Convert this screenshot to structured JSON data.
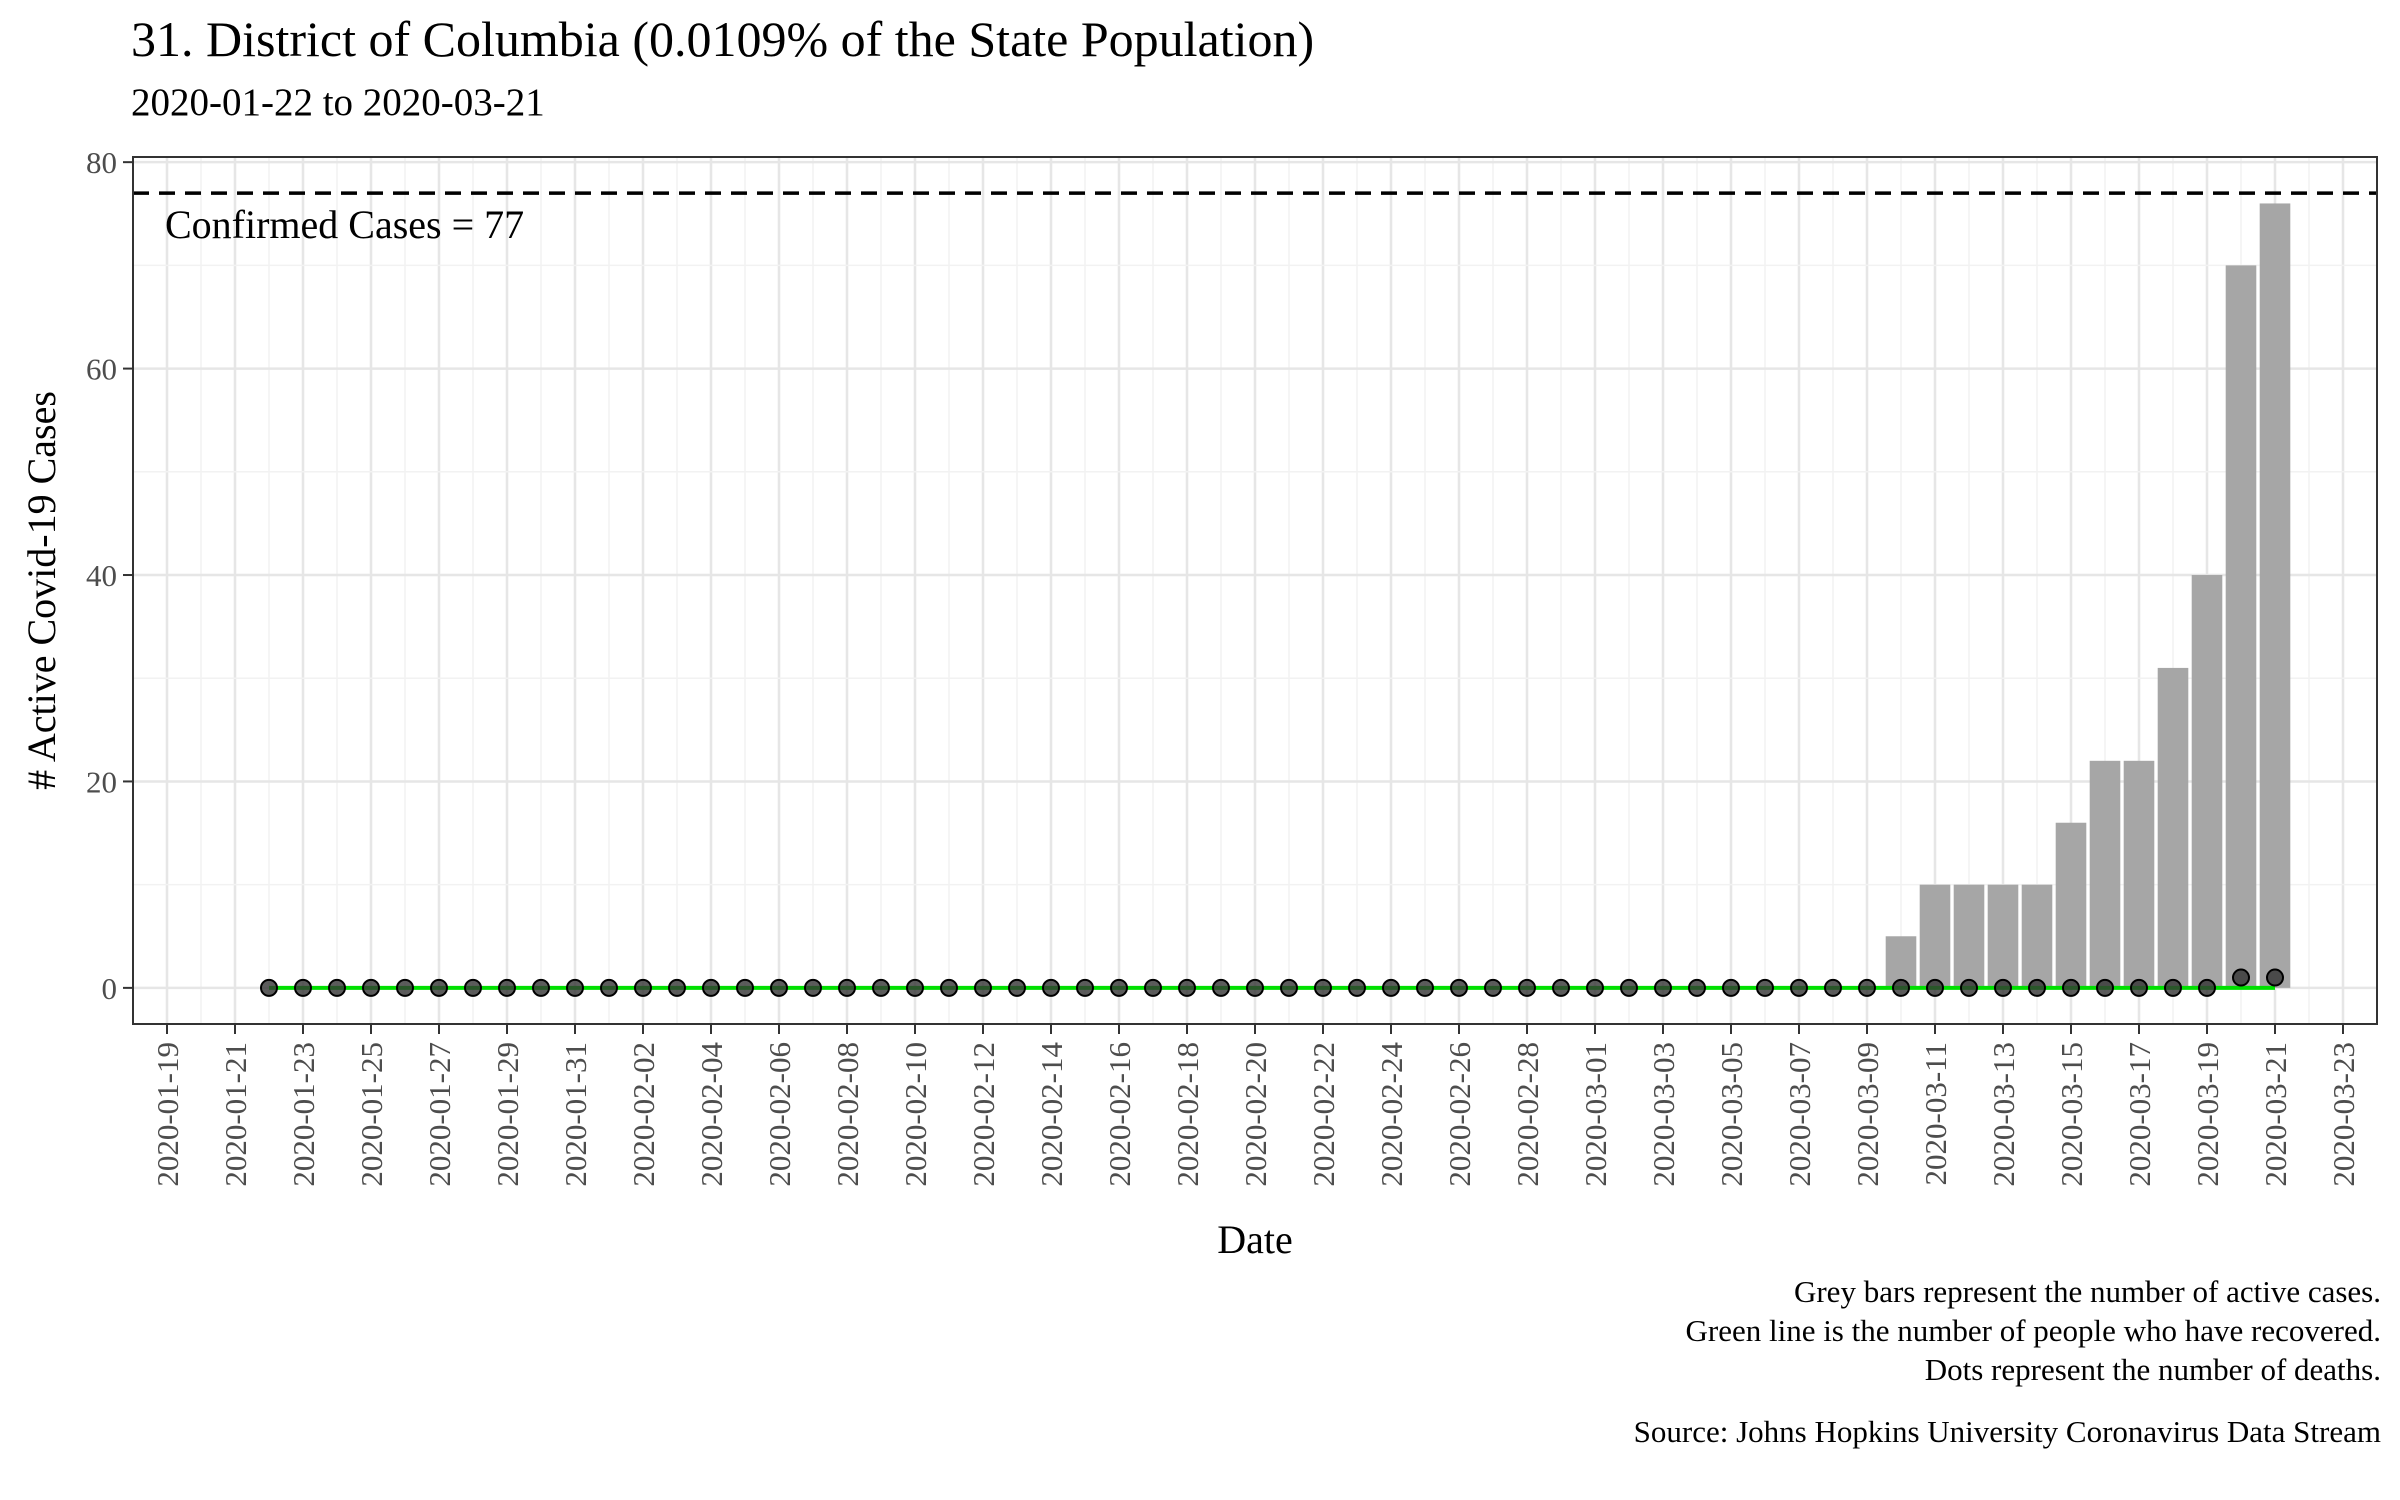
{
  "title": "31. District of Columbia (0.0109% of the State Population)",
  "subtitle": "2020-01-22 to 2020-03-21",
  "caption": {
    "lines": [
      "Grey bars represent the number of active cases.",
      "Green line is the number of people who have recovered.",
      "Dots represent the number of deaths."
    ],
    "source": "Source: Johns Hopkins University Coronavirus Data Stream"
  },
  "colors": {
    "bars": "#a6a6a6",
    "recovered_line": "#00e000",
    "death_dots": "#333333",
    "reference_line": "#000000",
    "grid_major": "#e6e6e6",
    "grid_minor": "#f2f2f2"
  },
  "chart_data": {
    "type": "bar",
    "title": "31. District of Columbia (0.0109% of the State Population)",
    "xlabel": "Date",
    "ylabel": "# Active Covid-19 Cases",
    "x_range": [
      "2020-01-18",
      "2020-03-24"
    ],
    "ylim": [
      -3.5,
      80.5
    ],
    "y_ticks": [
      0,
      20,
      40,
      60,
      80
    ],
    "x_ticks": [
      "2020-01-19",
      "2020-01-21",
      "2020-01-23",
      "2020-01-25",
      "2020-01-27",
      "2020-01-29",
      "2020-01-31",
      "2020-02-02",
      "2020-02-04",
      "2020-02-06",
      "2020-02-08",
      "2020-02-10",
      "2020-02-12",
      "2020-02-14",
      "2020-02-16",
      "2020-02-18",
      "2020-02-20",
      "2020-02-22",
      "2020-02-24",
      "2020-02-26",
      "2020-02-28",
      "2020-03-01",
      "2020-03-03",
      "2020-03-05",
      "2020-03-07",
      "2020-03-09",
      "2020-03-11",
      "2020-03-13",
      "2020-03-15",
      "2020-03-17",
      "2020-03-19",
      "2020-03-21",
      "2020-03-23"
    ],
    "grid": true,
    "legend": "none",
    "reference_line": {
      "value": 77,
      "label": "Confirmed Cases = 77",
      "style": "dashed"
    },
    "dates_start": "2020-01-22",
    "dates_end": "2020-03-21",
    "series": [
      {
        "name": "Active cases",
        "type": "bar",
        "values": [
          0,
          0,
          0,
          0,
          0,
          0,
          0,
          0,
          0,
          0,
          0,
          0,
          0,
          0,
          0,
          0,
          0,
          0,
          0,
          0,
          0,
          0,
          0,
          0,
          0,
          0,
          0,
          0,
          0,
          0,
          0,
          0,
          0,
          0,
          0,
          0,
          0,
          0,
          0,
          0,
          0,
          0,
          0,
          0,
          0,
          0,
          0,
          0,
          5,
          10,
          10,
          10,
          10,
          16,
          22,
          22,
          31,
          40,
          70,
          76
        ]
      },
      {
        "name": "Recovered",
        "type": "line",
        "values": [
          0,
          0,
          0,
          0,
          0,
          0,
          0,
          0,
          0,
          0,
          0,
          0,
          0,
          0,
          0,
          0,
          0,
          0,
          0,
          0,
          0,
          0,
          0,
          0,
          0,
          0,
          0,
          0,
          0,
          0,
          0,
          0,
          0,
          0,
          0,
          0,
          0,
          0,
          0,
          0,
          0,
          0,
          0,
          0,
          0,
          0,
          0,
          0,
          0,
          0,
          0,
          0,
          0,
          0,
          0,
          0,
          0,
          0,
          0,
          0
        ]
      },
      {
        "name": "Deaths",
        "type": "scatter",
        "values": [
          0,
          0,
          0,
          0,
          0,
          0,
          0,
          0,
          0,
          0,
          0,
          0,
          0,
          0,
          0,
          0,
          0,
          0,
          0,
          0,
          0,
          0,
          0,
          0,
          0,
          0,
          0,
          0,
          0,
          0,
          0,
          0,
          0,
          0,
          0,
          0,
          0,
          0,
          0,
          0,
          0,
          0,
          0,
          0,
          0,
          0,
          0,
          0,
          0,
          0,
          0,
          0,
          0,
          0,
          0,
          0,
          0,
          0,
          1,
          1
        ]
      }
    ]
  }
}
